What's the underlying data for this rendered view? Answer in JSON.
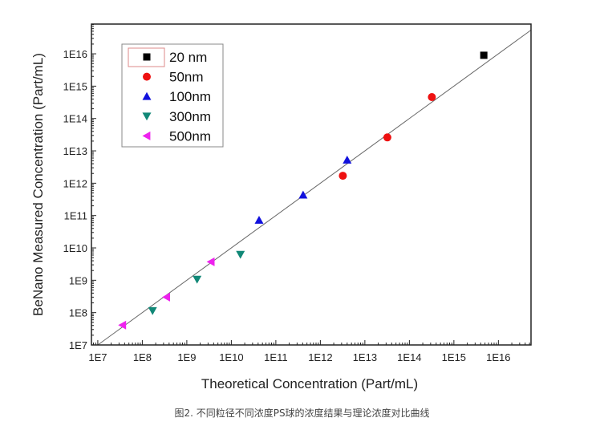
{
  "chart_data": {
    "type": "scatter",
    "xlabel": "Theoretical Concentration (Part/mL)",
    "ylabel": "BeNano Measured Concentration (Part/mL)",
    "xscale": "log",
    "yscale": "log",
    "xlim": [
      7200000.0,
      5.4e+16
    ],
    "ylim": [
      10000000.0,
      8.3e+16
    ],
    "xticks": [
      "1E7",
      "1E8",
      "1E9",
      "1E10",
      "1E11",
      "1E12",
      "1E13",
      "1E14",
      "1E15",
      "1E16"
    ],
    "yticks": [
      "1E7",
      "1E8",
      "1E9",
      "1E10",
      "1E11",
      "1E12",
      "1E13",
      "1E14",
      "1E15",
      "1E16"
    ],
    "grid": false,
    "legend_position": "top-left",
    "reference_line": "y = x",
    "series": [
      {
        "name": "20 nm",
        "marker": "square",
        "color": "#000000",
        "x": [
          4700000000000000.0
        ],
        "y": [
          9000000000000000.0
        ]
      },
      {
        "name": "50nm",
        "marker": "circle",
        "color": "#ee1111",
        "x": [
          3200000000000.0,
          32000000000000.0,
          320000000000000.0
        ],
        "y": [
          1700000000000.0,
          26000000000000.0,
          460000000000000.0
        ]
      },
      {
        "name": "100nm",
        "marker": "triangle-up",
        "color": "#1111dd",
        "x": [
          42000000000.0,
          410000000000.0,
          4000000000000.0
        ],
        "y": [
          72000000000.0,
          430000000000.0,
          5200000000000.0
        ]
      },
      {
        "name": "300nm",
        "marker": "triangle-down",
        "color": "#118877",
        "x": [
          170000000.0,
          1700000000.0,
          16000000000.0
        ],
        "y": [
          115000000.0,
          1070000000.0,
          6300000000.0
        ]
      },
      {
        "name": "500nm",
        "marker": "triangle-left",
        "color": "#ee22ee",
        "x": [
          36000000.0,
          350000000.0,
          3500000000.0
        ],
        "y": [
          41000000.0,
          300000000.0,
          3700000000.0
        ]
      }
    ]
  },
  "caption": "图2. 不同粒径不同浓度PS球的浓度结果与理论浓度对比曲线"
}
